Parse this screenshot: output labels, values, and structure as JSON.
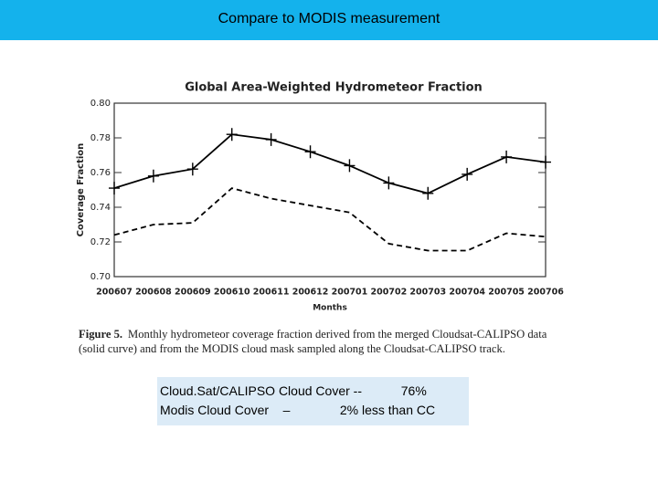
{
  "slide_title": "Compare to MODIS measurement",
  "chart_data": {
    "type": "line",
    "title": "Global Area-Weighted Hydrometeor Fraction",
    "x_label": "Months",
    "y_label": "Coverage Fraction",
    "categories": [
      "200607",
      "200608",
      "200609",
      "200610",
      "200611",
      "200612",
      "200701",
      "200702",
      "200703",
      "200704",
      "200705",
      "200706"
    ],
    "series": [
      {
        "color": "#000000",
        "dashed": false,
        "markers": true,
        "values": [
          0.751,
          0.758,
          0.762,
          0.782,
          0.779,
          0.772,
          0.764,
          0.754,
          0.748,
          0.759,
          0.769,
          0.766
        ]
      },
      {
        "color": "#000000",
        "dashed": true,
        "markers": false,
        "values": [
          0.724,
          0.73,
          0.731,
          0.751,
          0.745,
          0.741,
          0.737,
          0.719,
          0.715,
          0.715,
          0.725,
          0.723
        ]
      }
    ],
    "ylim": [
      0.7,
      0.8
    ],
    "yticks": [
      {
        "value": 0.7,
        "label": "0.70"
      },
      {
        "value": 0.72,
        "label": "0.72"
      },
      {
        "value": 0.74,
        "label": "0.74"
      },
      {
        "value": 0.76,
        "label": "0.76"
      },
      {
        "value": 0.78,
        "label": "0.78"
      },
      {
        "value": 0.8,
        "label": "0.80"
      }
    ],
    "grid": false
  },
  "caption": {
    "label": "Figure 5.",
    "text": "Monthly hydrometeor coverage fraction derived from the merged Cloudsat-CALIPSO data (solid curve) and from the MODIS cloud mask sampled along the Cloudsat-CALIPSO track."
  },
  "note": {
    "lines": [
      "Cloud.Sat/CALIPSO Cloud Cover --           76%",
      "Modis Cloud Cover    –              2% less than CC"
    ]
  }
}
